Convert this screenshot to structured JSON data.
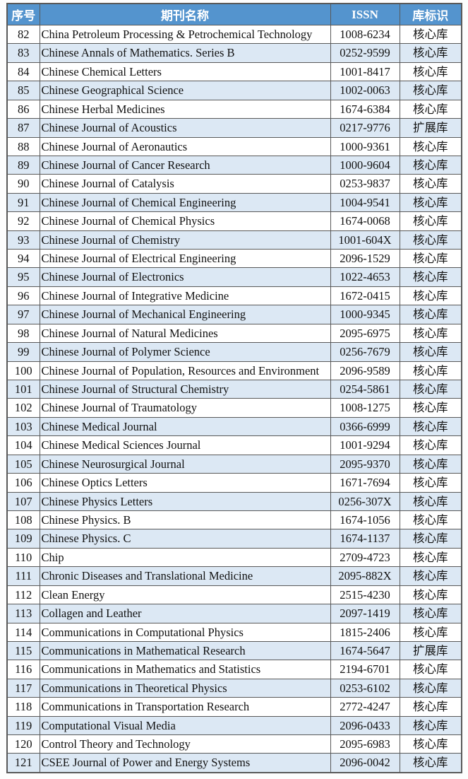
{
  "colors": {
    "header_bg": "#5494ce",
    "header_text": "#ffffff",
    "row_alt_bg": "#dce8f4",
    "border": "#595959"
  },
  "table": {
    "headers": [
      "序号",
      "期刊名称",
      "ISSN",
      "库标识"
    ],
    "rows": [
      {
        "no": "82",
        "name": "China Petroleum Processing & Petrochemical Technology",
        "issn": "1008-6234",
        "tag": "核心库"
      },
      {
        "no": "83",
        "name": "Chinese Annals of Mathematics. Series B",
        "issn": "0252-9599",
        "tag": "核心库"
      },
      {
        "no": "84",
        "name": "Chinese Chemical Letters",
        "issn": "1001-8417",
        "tag": "核心库"
      },
      {
        "no": "85",
        "name": "Chinese Geographical Science",
        "issn": "1002-0063",
        "tag": "核心库"
      },
      {
        "no": "86",
        "name": "Chinese Herbal Medicines",
        "issn": "1674-6384",
        "tag": "核心库"
      },
      {
        "no": "87",
        "name": "Chinese Journal of Acoustics",
        "issn": "0217-9776",
        "tag": "扩展库"
      },
      {
        "no": "88",
        "name": "Chinese Journal of Aeronautics",
        "issn": "1000-9361",
        "tag": "核心库"
      },
      {
        "no": "89",
        "name": "Chinese Journal of Cancer Research",
        "issn": "1000-9604",
        "tag": "核心库"
      },
      {
        "no": "90",
        "name": "Chinese Journal of Catalysis",
        "issn": "0253-9837",
        "tag": "核心库"
      },
      {
        "no": "91",
        "name": "Chinese Journal of Chemical Engineering",
        "issn": "1004-9541",
        "tag": "核心库"
      },
      {
        "no": "92",
        "name": "Chinese Journal of Chemical Physics",
        "issn": "1674-0068",
        "tag": "核心库"
      },
      {
        "no": "93",
        "name": "Chinese Journal of Chemistry",
        "issn": "1001-604X",
        "tag": "核心库"
      },
      {
        "no": "94",
        "name": "Chinese Journal of Electrical Engineering",
        "issn": "2096-1529",
        "tag": "核心库"
      },
      {
        "no": "95",
        "name": "Chinese Journal of Electronics",
        "issn": "1022-4653",
        "tag": "核心库"
      },
      {
        "no": "96",
        "name": "Chinese Journal of Integrative Medicine",
        "issn": "1672-0415",
        "tag": "核心库"
      },
      {
        "no": "97",
        "name": "Chinese Journal of Mechanical Engineering",
        "issn": "1000-9345",
        "tag": "核心库"
      },
      {
        "no": "98",
        "name": "Chinese Journal of Natural Medicines",
        "issn": "2095-6975",
        "tag": "核心库"
      },
      {
        "no": "99",
        "name": "Chinese Journal of Polymer Science",
        "issn": "0256-7679",
        "tag": "核心库"
      },
      {
        "no": "100",
        "name": "Chinese Journal of Population, Resources and Environment",
        "issn": "2096-9589",
        "tag": "核心库"
      },
      {
        "no": "101",
        "name": "Chinese Journal of Structural Chemistry",
        "issn": "0254-5861",
        "tag": "核心库"
      },
      {
        "no": "102",
        "name": "Chinese Journal of Traumatology",
        "issn": "1008-1275",
        "tag": "核心库"
      },
      {
        "no": "103",
        "name": "Chinese Medical Journal",
        "issn": "0366-6999",
        "tag": "核心库"
      },
      {
        "no": "104",
        "name": "Chinese Medical Sciences Journal",
        "issn": "1001-9294",
        "tag": "核心库"
      },
      {
        "no": "105",
        "name": "Chinese Neurosurgical Journal",
        "issn": "2095-9370",
        "tag": "核心库"
      },
      {
        "no": "106",
        "name": "Chinese Optics Letters",
        "issn": "1671-7694",
        "tag": "核心库"
      },
      {
        "no": "107",
        "name": "Chinese Physics Letters",
        "issn": "0256-307X",
        "tag": "核心库"
      },
      {
        "no": "108",
        "name": "Chinese Physics. B",
        "issn": "1674-1056",
        "tag": "核心库"
      },
      {
        "no": "109",
        "name": "Chinese Physics. C",
        "issn": "1674-1137",
        "tag": "核心库"
      },
      {
        "no": "110",
        "name": "Chip",
        "issn": "2709-4723",
        "tag": "核心库"
      },
      {
        "no": "111",
        "name": "Chronic Diseases and Translational Medicine",
        "issn": "2095-882X",
        "tag": "核心库"
      },
      {
        "no": "112",
        "name": "Clean Energy",
        "issn": "2515-4230",
        "tag": "核心库"
      },
      {
        "no": "113",
        "name": "Collagen and Leather",
        "issn": "2097-1419",
        "tag": "核心库"
      },
      {
        "no": "114",
        "name": "Communications in Computational Physics",
        "issn": "1815-2406",
        "tag": "核心库"
      },
      {
        "no": "115",
        "name": "Communications in Mathematical Research",
        "issn": "1674-5647",
        "tag": "扩展库"
      },
      {
        "no": "116",
        "name": "Communications in Mathematics and Statistics",
        "issn": "2194-6701",
        "tag": "核心库"
      },
      {
        "no": "117",
        "name": "Communications in Theoretical Physics",
        "issn": "0253-6102",
        "tag": "核心库"
      },
      {
        "no": "118",
        "name": "Communications in Transportation Research",
        "issn": "2772-4247",
        "tag": "核心库"
      },
      {
        "no": "119",
        "name": "Computational Visual Media",
        "issn": "2096-0433",
        "tag": "核心库"
      },
      {
        "no": "120",
        "name": "Control Theory and Technology",
        "issn": "2095-6983",
        "tag": "核心库"
      },
      {
        "no": "121",
        "name": "CSEE Journal of Power and Energy Systems",
        "issn": "2096-0042",
        "tag": "核心库"
      }
    ]
  }
}
